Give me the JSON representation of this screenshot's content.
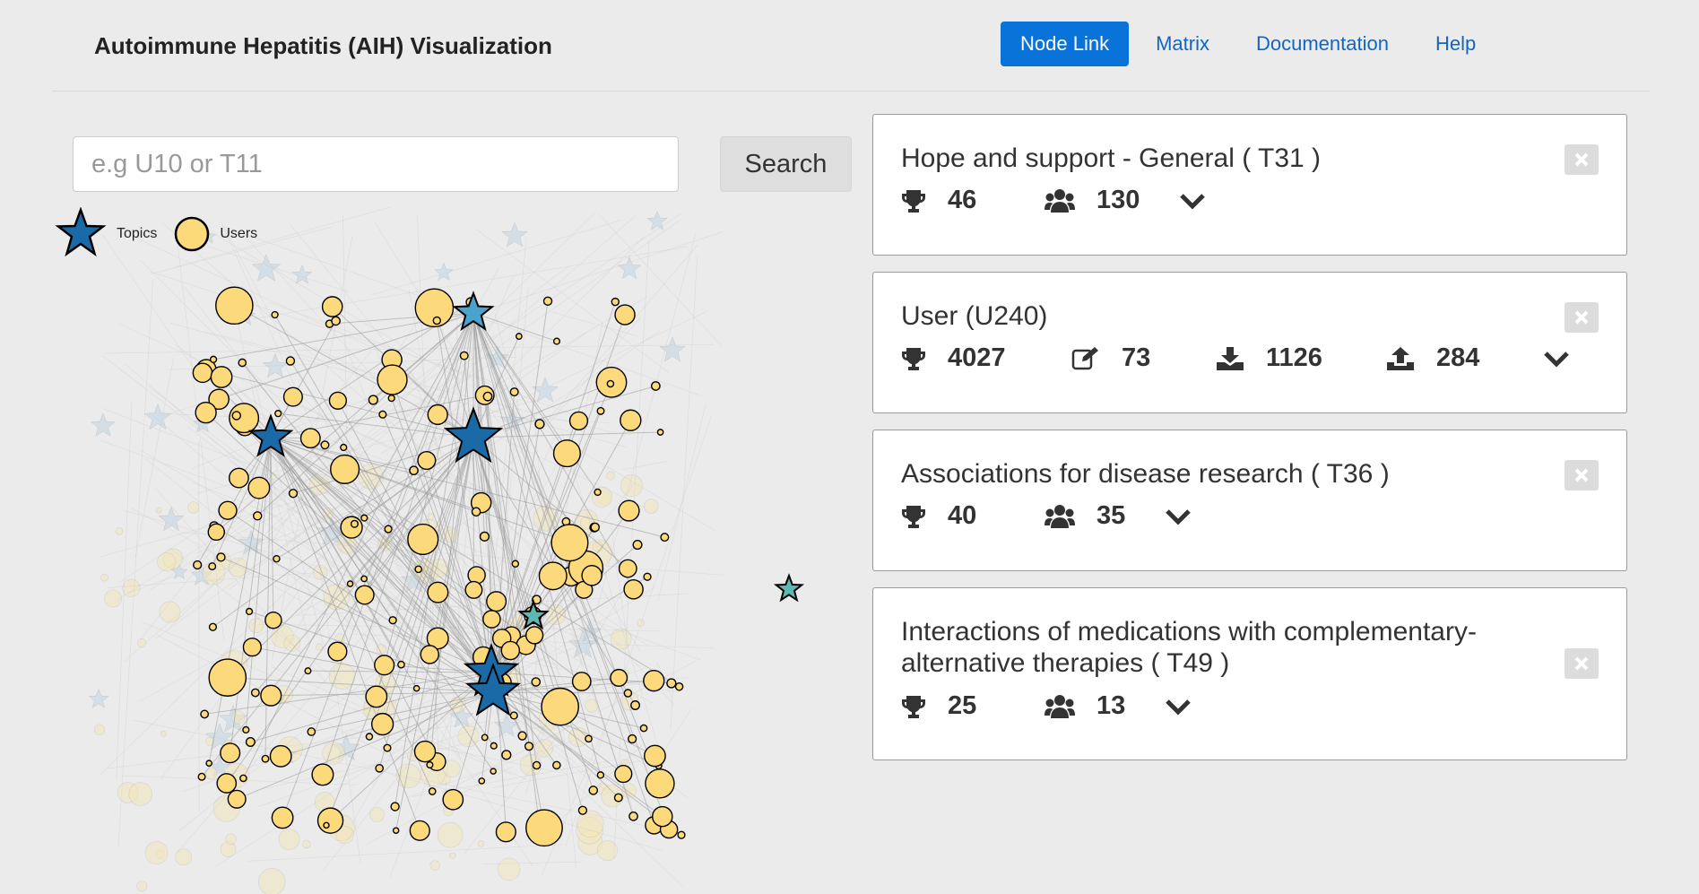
{
  "header": {
    "title": "Autoimmune Hepatitis (AIH) Visualization",
    "nav": [
      {
        "label": "Node Link",
        "active": true
      },
      {
        "label": "Matrix",
        "active": false
      },
      {
        "label": "Documentation",
        "active": false
      },
      {
        "label": "Help",
        "active": false
      }
    ]
  },
  "search": {
    "placeholder": "e.g U10 or T11",
    "value": "",
    "button_label": "Search"
  },
  "legend": {
    "topics_label": "Topics",
    "users_label": "Users"
  },
  "colors": {
    "accent": "#0a73d9",
    "topic_star": "#1a6aa8",
    "topic_star_light": "#4aa3cc",
    "topic_star_teal": "#5cb8b2",
    "user_node": "#fcd97a",
    "link": "#1565c0"
  },
  "cards": [
    {
      "title": "Hope and support - General ( T31 )",
      "stats": [
        {
          "icon": "trophy-icon",
          "value": "46"
        },
        {
          "icon": "users-icon",
          "value": "130"
        }
      ]
    },
    {
      "title": "User (U240)",
      "stats": [
        {
          "icon": "trophy-icon",
          "value": "4027"
        },
        {
          "icon": "edit-icon",
          "value": "73"
        },
        {
          "icon": "download-icon",
          "value": "1126"
        },
        {
          "icon": "upload-icon",
          "value": "284"
        }
      ]
    },
    {
      "title": "Associations for disease research ( T36 )",
      "stats": [
        {
          "icon": "trophy-icon",
          "value": "40"
        },
        {
          "icon": "users-icon",
          "value": "35"
        }
      ]
    },
    {
      "title": "Interactions of medications with complementary-alternative therapies ( T49 )",
      "stats": [
        {
          "icon": "trophy-icon",
          "value": "25"
        },
        {
          "icon": "users-icon",
          "value": "13"
        }
      ]
    }
  ]
}
